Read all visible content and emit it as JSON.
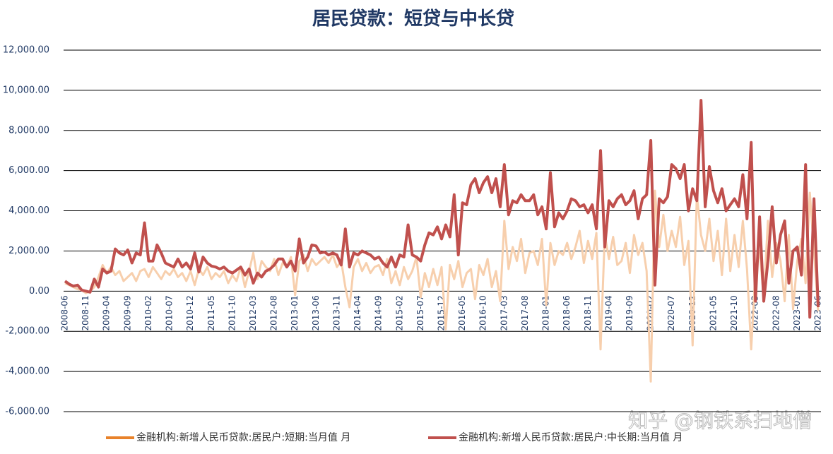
{
  "chart_data": {
    "type": "line",
    "title": "居民贷款：短贷与中长贷",
    "watermark": "知乎 @钢铁系扫地僧",
    "grid": true,
    "legend": "bottom",
    "ylim": [
      -6000,
      12000
    ],
    "yticks": [
      {
        "value": -6000,
        "label": "-6,000.00"
      },
      {
        "value": -4000,
        "label": "-4,000.00"
      },
      {
        "value": -2000,
        "label": "-2,000.00"
      },
      {
        "value": 0,
        "label": "0.00"
      },
      {
        "value": 2000,
        "label": "2,000.00"
      },
      {
        "value": 4000,
        "label": "4,000.00"
      },
      {
        "value": 6000,
        "label": "6,000.00"
      },
      {
        "value": 8000,
        "label": "8,000.00"
      },
      {
        "value": 10000,
        "label": "10,000.00"
      },
      {
        "value": 12000,
        "label": "12,000.00"
      }
    ],
    "categories": [
      "2008-06",
      null,
      null,
      null,
      null,
      "2008-11",
      null,
      null,
      null,
      null,
      "2009-04",
      null,
      null,
      null,
      null,
      "2009-09",
      null,
      null,
      null,
      null,
      "2010-02",
      null,
      null,
      null,
      null,
      "2010-07",
      null,
      null,
      null,
      null,
      "2010-12",
      null,
      null,
      null,
      null,
      "2011-05",
      null,
      null,
      null,
      null,
      "2011-10",
      null,
      null,
      null,
      null,
      "2012-03",
      null,
      null,
      null,
      null,
      "2012-08",
      null,
      null,
      null,
      null,
      "2013-01",
      null,
      null,
      null,
      null,
      "2013-06",
      null,
      null,
      null,
      null,
      "2013-11",
      null,
      null,
      null,
      null,
      "2014-04",
      null,
      null,
      null,
      null,
      "2014-09",
      null,
      null,
      null,
      null,
      "2015-02",
      null,
      null,
      null,
      null,
      "2015-07",
      null,
      null,
      null,
      null,
      "2015-12",
      null,
      null,
      null,
      null,
      "2016-05",
      null,
      null,
      null,
      null,
      "2016-10",
      null,
      null,
      null,
      null,
      "2017-03",
      null,
      null,
      null,
      null,
      "2017-08",
      null,
      null,
      null,
      null,
      "2018-01",
      null,
      null,
      null,
      null,
      "2018-06",
      null,
      null,
      null,
      null,
      "2018-11",
      null,
      null,
      null,
      null,
      "2019-04",
      null,
      null,
      null,
      null,
      "2019-09",
      null,
      null,
      null,
      null,
      "2020-02",
      null,
      null,
      null,
      null,
      "2020-07",
      null,
      null,
      null,
      null,
      "2020-12",
      null,
      null,
      null,
      null,
      "2021-05",
      null,
      null,
      null,
      null,
      "2021-10",
      null,
      null,
      null,
      null,
      "2022-03",
      null,
      null,
      null,
      null,
      "2022-08",
      null,
      null,
      null,
      null,
      "2023-01",
      null,
      null,
      null,
      null,
      "2023-06"
    ],
    "series": [
      {
        "name": "金融机构:新增人民币贷款:居民户:短期:当月值 月",
        "color": "#e8822a",
        "line_color": "#f7cfad",
        "values": [
          400,
          300,
          200,
          100,
          50,
          -100,
          0,
          200,
          700,
          1300,
          900,
          1200,
          800,
          1000,
          500,
          700,
          900,
          500,
          1000,
          1100,
          700,
          1200,
          900,
          600,
          1000,
          800,
          1100,
          700,
          900,
          500,
          1000,
          300,
          1100,
          800,
          1200,
          600,
          900,
          700,
          1000,
          400,
          800,
          500,
          1200,
          200,
          1000,
          1900,
          600,
          1500,
          1200,
          1000,
          1600,
          800,
          1400,
          1200,
          1700,
          -200,
          1500,
          1800,
          1000,
          1600,
          1300,
          1500,
          1700,
          1400,
          1800,
          1200,
          1500,
          200,
          -800,
          1200,
          1600,
          1000,
          1400,
          900,
          1200,
          1300,
          800,
          1600,
          400,
          1000,
          300,
          1200,
          600,
          1000,
          1700,
          -300,
          900,
          200,
          1100,
          300,
          1200,
          -1900,
          1300,
          600,
          1500,
          200,
          900,
          1100,
          -400,
          1300,
          800,
          1600,
          200,
          1000,
          -500,
          3500,
          1100,
          2200,
          1500,
          2600,
          900,
          1900,
          2000,
          1300,
          2600,
          -700,
          2400,
          1300,
          2000,
          1800,
          2400,
          1600,
          2200,
          3000,
          1400,
          2500,
          1600,
          2900,
          -2900,
          2800,
          1600,
          2700,
          1300,
          1500,
          2400,
          900,
          2800,
          1800,
          2400,
          1000,
          -4500,
          5000,
          2200,
          3800,
          2000,
          3000,
          2200,
          3700,
          1300,
          2500,
          -2700,
          4800,
          2800,
          2000,
          3600,
          1500,
          3000,
          800,
          3600,
          1000,
          2800,
          1200,
          3500,
          1100,
          -2900,
          1000,
          2000,
          -300,
          3500,
          700,
          2400,
          1500,
          -500,
          2800,
          -900,
          1500,
          2600,
          400,
          4900,
          2000,
          -1000
        ]
      },
      {
        "name": "金融机构:新增人民币贷款:居民户:中长期:当月值 月",
        "color": "#c0504d",
        "line_color": "#c0504d",
        "values": [
          500,
          350,
          250,
          300,
          50,
          0,
          -50,
          600,
          200,
          1100,
          900,
          1000,
          2100,
          1900,
          1800,
          2050,
          1400,
          1900,
          1800,
          3400,
          1500,
          1500,
          2300,
          1900,
          1400,
          1300,
          1200,
          1600,
          1200,
          1400,
          1100,
          1900,
          950,
          1700,
          1400,
          1250,
          1200,
          1100,
          1200,
          1000,
          900,
          1050,
          1200,
          800,
          1100,
          400,
          900,
          700,
          1000,
          1100,
          1300,
          1600,
          1600,
          1200,
          1500,
          1000,
          2600,
          1400,
          1700,
          2300,
          2250,
          1900,
          1950,
          1800,
          1900,
          1800,
          1300,
          3100,
          1200,
          1900,
          1800,
          2000,
          1900,
          1800,
          1600,
          1700,
          1400,
          1200,
          1700,
          1200,
          1800,
          1700,
          3300,
          1800,
          1700,
          1500,
          2300,
          2900,
          2800,
          3200,
          2600,
          3300,
          2700,
          4800,
          1800,
          4400,
          4300,
          5300,
          5600,
          4900,
          5400,
          5700,
          4900,
          5600,
          4200,
          6300,
          3800,
          4500,
          4400,
          4800,
          4500,
          4500,
          4800,
          3800,
          4200,
          3100,
          5900,
          3200,
          3900,
          3600,
          4000,
          4600,
          4500,
          4200,
          4300,
          3900,
          4300,
          3100,
          7000,
          2200,
          4500,
          4200,
          4600,
          4800,
          4300,
          4500,
          5000,
          3600,
          4600,
          4800,
          7500,
          300,
          4600,
          4400,
          4700,
          6300,
          6100,
          5600,
          6300,
          4000,
          5100,
          4500,
          9500,
          4200,
          6200,
          5000,
          4400,
          5100,
          4000,
          4300,
          4600,
          4200,
          5800,
          3600,
          7400,
          -500,
          3700,
          -500,
          1500,
          4200,
          1400,
          2800,
          3500,
          400,
          2000,
          2200,
          800,
          6300,
          -1300,
          4600,
          -800
        ]
      }
    ]
  }
}
